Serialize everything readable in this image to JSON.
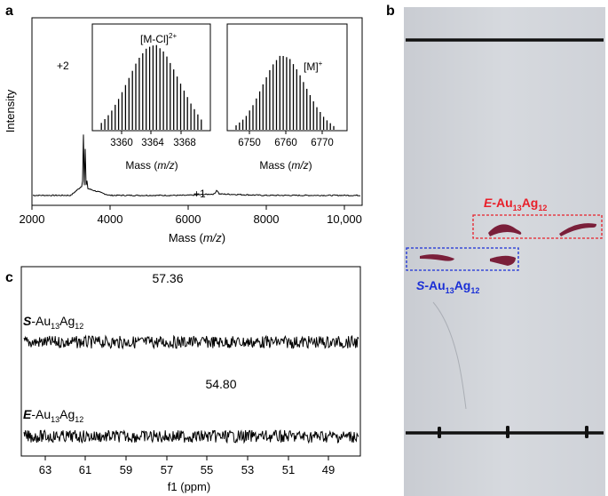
{
  "panels": {
    "a": {
      "label": "a",
      "ylabel": "Intensity",
      "xlabel_prefix": "Mass (",
      "xlabel_italic": "m/z",
      "xlabel_suffix": ")",
      "xticks": [
        "2000",
        "4000",
        "6000",
        "8000",
        "10,000"
      ],
      "peak_labels": [
        "+2",
        "+1"
      ],
      "inset1": {
        "ion_main": "[M-Cl]",
        "ion_sup": "2+",
        "xticks": [
          "3360",
          "3364",
          "3368"
        ],
        "xlabel_prefix": "Mass (",
        "xlabel_italic": "m/z",
        "xlabel_suffix": ")"
      },
      "inset2": {
        "ion_main": "[M]",
        "ion_sup": "+",
        "xticks": [
          "6750",
          "6760",
          "6770"
        ],
        "xlabel_prefix": "Mass (",
        "xlabel_italic": "m/z",
        "xlabel_suffix": ")"
      }
    },
    "b": {
      "label": "b",
      "e_prefix": "E",
      "s_prefix": "S",
      "cluster_main1": "-Au",
      "cluster_sub1": "13",
      "cluster_main2": "Ag",
      "cluster_sub2": "12",
      "colors": {
        "e": "#e8202a",
        "s": "#1a2fd6",
        "spot": "#7a1f3a"
      }
    },
    "c": {
      "label": "c",
      "peak1": "57.36",
      "peak2": "54.80",
      "s_prefix": "S",
      "e_prefix": "E",
      "cluster_main1": "-Au",
      "cluster_sub1": "13",
      "cluster_main2": "Ag",
      "cluster_sub2": "12",
      "xticks": [
        "63",
        "61",
        "59",
        "57",
        "55",
        "53",
        "51",
        "49"
      ],
      "xlabel": "f1 (ppm)"
    }
  },
  "chart_data": [
    {
      "type": "line",
      "title": "",
      "xlabel": "Mass (m/z)",
      "ylabel": "Intensity",
      "xlim": [
        2000,
        10500
      ],
      "series": [
        {
          "x": [
            2000,
            3000,
            3300,
            3364,
            3420,
            4000,
            6000,
            6700,
            6760,
            6820,
            8000,
            10500
          ],
          "y": [
            0.01,
            0.01,
            0.08,
            1.0,
            0.06,
            0.01,
            0.01,
            0.02,
            0.05,
            0.02,
            0.01,
            0.01
          ]
        }
      ]
    },
    {
      "type": "bar",
      "title": "",
      "xlabel": "Mass (m/z)",
      "xlim": [
        3357,
        3370
      ],
      "series": [
        {
          "x": [
            3358,
            3359,
            3360,
            3361,
            3362,
            3363,
            3364,
            3365,
            3366,
            3367,
            3368,
            3369
          ],
          "y": [
            0.08,
            0.2,
            0.38,
            0.6,
            0.82,
            0.96,
            1.0,
            0.9,
            0.7,
            0.48,
            0.28,
            0.12
          ]
        }
      ]
    },
    {
      "type": "bar",
      "title": "",
      "xlabel": "Mass (m/z)",
      "xlim": [
        6748,
        6775
      ],
      "series": [
        {
          "x": [
            6750,
            6752,
            6754,
            6756,
            6758,
            6760,
            6762,
            6764,
            6766,
            6768,
            6770,
            6772
          ],
          "y": [
            0.06,
            0.16,
            0.35,
            0.6,
            0.85,
            1.0,
            0.96,
            0.78,
            0.54,
            0.32,
            0.15,
            0.05
          ]
        }
      ]
    },
    {
      "type": "line",
      "title": "",
      "xlabel": "f1 (ppm)",
      "xlim": [
        64,
        48
      ],
      "series": [
        {
          "name": "S-Au13Ag12",
          "x": [
            64,
            58.5,
            57.6,
            57.36,
            57.0,
            56.3,
            48
          ],
          "y": [
            0,
            0,
            0.9,
            1.0,
            0.92,
            0,
            0
          ]
        },
        {
          "name": "E-Au13Ag12",
          "x": [
            64,
            55.7,
            55.0,
            54.8,
            54.3,
            53.7,
            48
          ],
          "y": [
            0,
            0,
            0.9,
            1.0,
            0.95,
            0,
            0
          ]
        }
      ]
    }
  ]
}
